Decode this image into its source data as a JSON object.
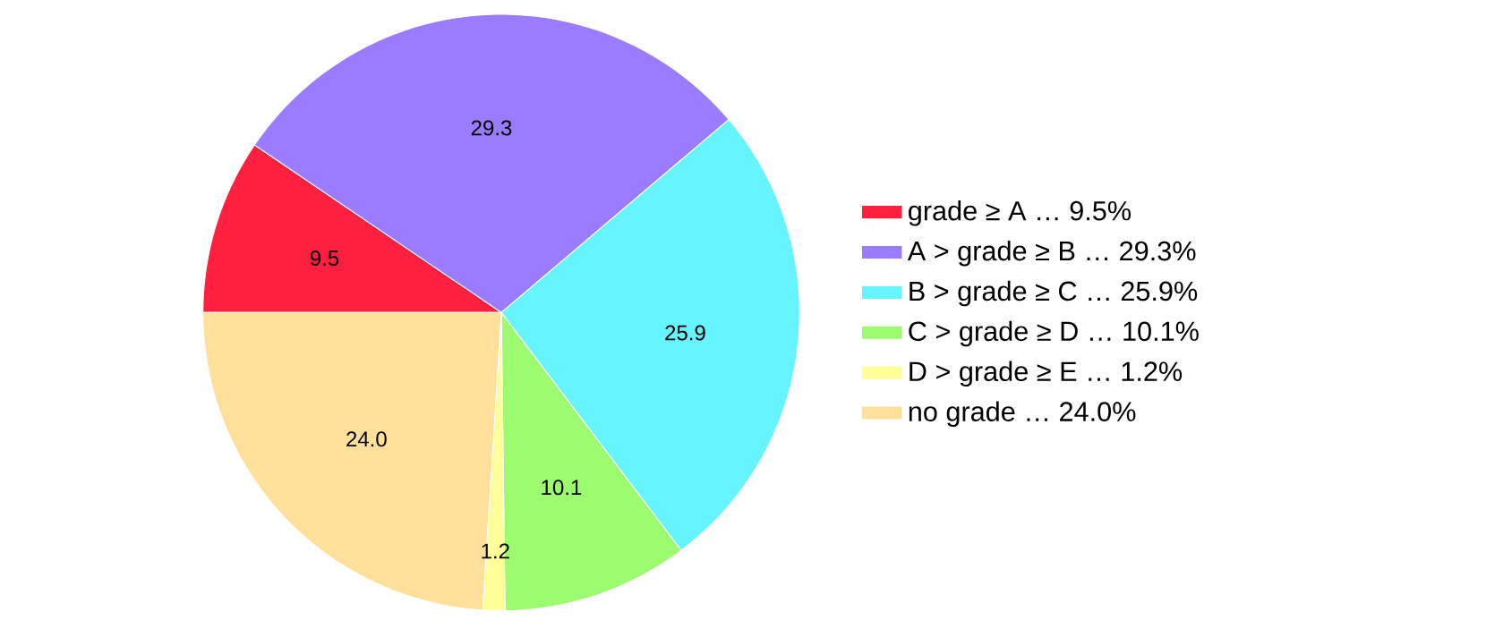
{
  "chart_data": {
    "type": "pie",
    "categories": [
      "grade ≥ A … 9.5%",
      "A > grade ≥ B … 29.3%",
      "B > grade ≥ C … 25.9%",
      "C > grade ≥ D … 10.1%",
      "D > grade ≥ E … 1.2%",
      "no grade … 24.0%"
    ],
    "values": [
      9.5,
      29.3,
      25.9,
      10.1,
      1.2,
      24.0
    ],
    "value_labels": [
      "9.5",
      "29.3",
      "25.9",
      "10.1",
      "1.2",
      "24.0"
    ],
    "colors": [
      "#ff1f3e",
      "#9b7bff",
      "#66f5ff",
      "#9cfb6f",
      "#ffff99",
      "#ffe09b"
    ],
    "legend": "right"
  }
}
